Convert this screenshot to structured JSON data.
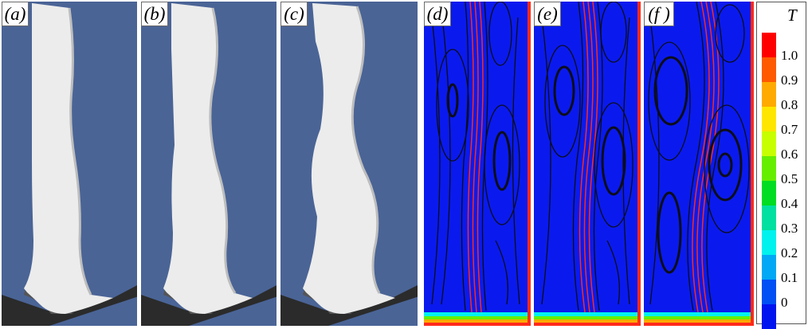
{
  "panels": [
    {
      "id": "a",
      "label": "(a)",
      "kind": "surface"
    },
    {
      "id": "b",
      "label": "(b)",
      "kind": "surface"
    },
    {
      "id": "c",
      "label": "(c)",
      "kind": "surface"
    },
    {
      "id": "d",
      "label": "(d)",
      "kind": "streamlines"
    },
    {
      "id": "e",
      "label": "(e)",
      "kind": "streamlines"
    },
    {
      "id": "f",
      "label": "(f )",
      "kind": "streamlines"
    }
  ],
  "colorbar": {
    "title": "T",
    "ticks": [
      "1.0",
      "0.9",
      "0.8",
      "0.7",
      "0.6",
      "0.5",
      "0.4",
      "0.3",
      "0.2",
      "0.1",
      "0"
    ],
    "colors": [
      "#ff0000",
      "#ff5a00",
      "#ffaa00",
      "#ffe600",
      "#c8ff00",
      "#66ee00",
      "#00dd22",
      "#00e0a0",
      "#00f2ee",
      "#00a8f5",
      "#0050f5",
      "#0014f0"
    ]
  },
  "colors": {
    "surface_background": "#4a6496",
    "field_background": "#0a1aee",
    "streamline": "#0d0d1a",
    "plume_line": "#ff2a1a"
  }
}
